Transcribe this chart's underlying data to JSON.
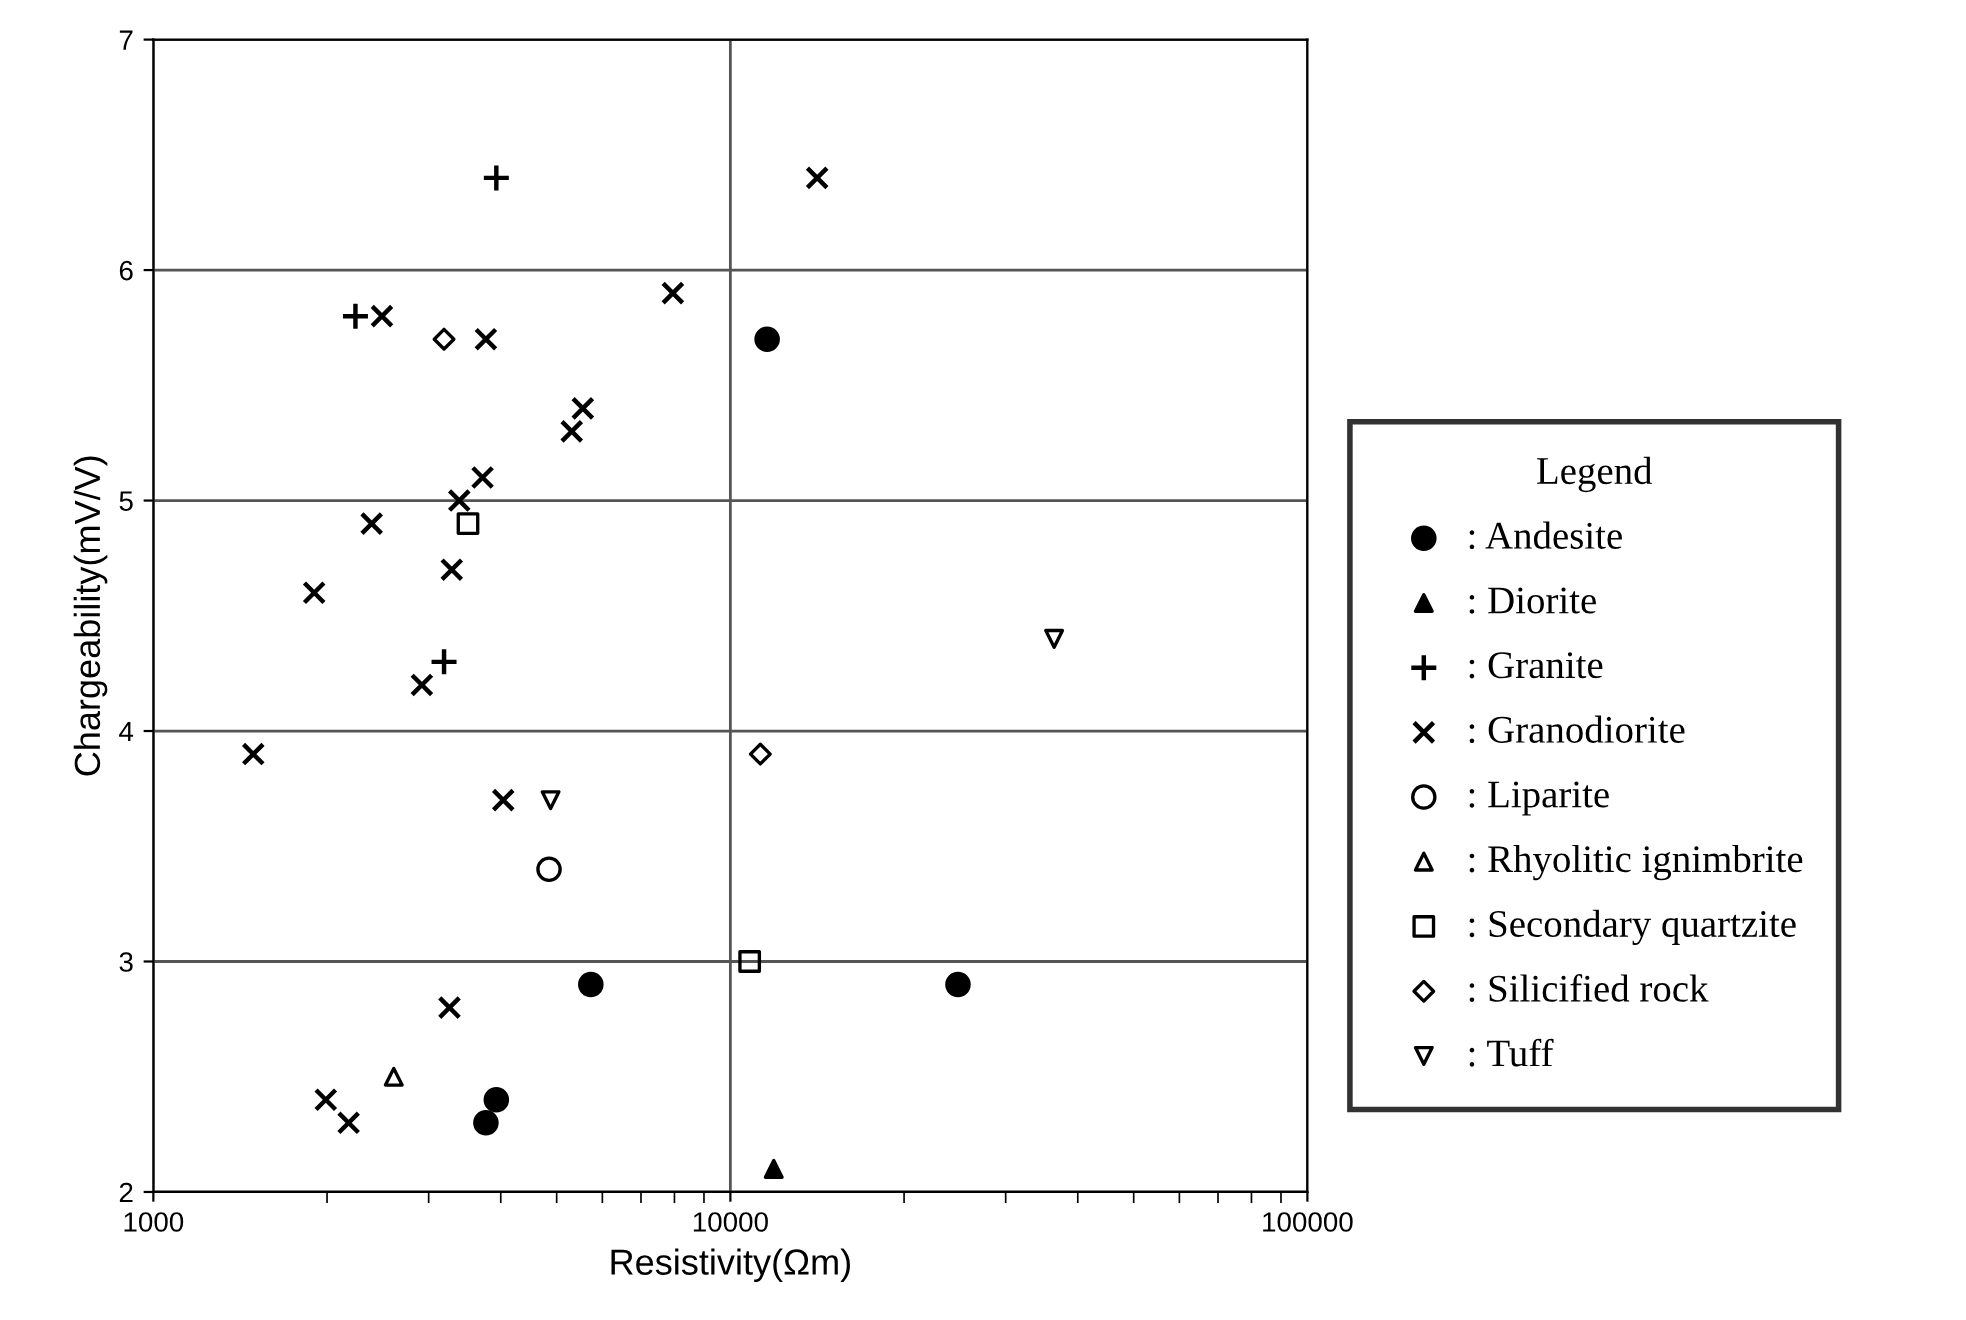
{
  "chart_data": {
    "type": "scatter",
    "xlabel": "Resistivity(Ωm)",
    "ylabel": "Chargeability(mV/V)",
    "legend_title": "Legend",
    "log": "x",
    "xlim": [
      1000,
      100000
    ],
    "xticks": [
      1000,
      10000,
      100000
    ],
    "ylim": [
      2,
      7
    ],
    "yticks": [
      2,
      3,
      4,
      5,
      6,
      7
    ],
    "grid": true,
    "legend": "right",
    "series": [
      {
        "name": ": Andesite",
        "color": "#000000",
        "marker": "circle",
        "x": [
          11580,
          5730,
          3930,
          3770,
          24800
        ],
        "values": [
          5.7,
          2.9,
          2.4,
          2.3,
          2.9
        ]
      },
      {
        "name": ": Diorite",
        "color": "#000000",
        "marker": "triangle",
        "x": [
          11890
        ],
        "values": [
          2.1
        ]
      },
      {
        "name": ": Granite",
        "color": "#000000",
        "marker": "plus",
        "x": [
          3930,
          2240,
          3190
        ],
        "values": [
          6.4,
          5.8,
          4.3
        ]
      },
      {
        "name": ": Granodiorite",
        "color": "#000000",
        "marker": "cross",
        "x": [
          7950,
          2490,
          3770,
          5550,
          5310,
          3720,
          3390,
          2390,
          3290,
          1900,
          2920,
          1490,
          4040,
          3260,
          1990,
          2180,
          14140
        ],
        "values": [
          5.9,
          5.8,
          5.7,
          5.4,
          5.3,
          5.1,
          5.0,
          4.9,
          4.7,
          4.6,
          4.2,
          3.9,
          3.7,
          2.8,
          2.4,
          2.3,
          6.4
        ]
      },
      {
        "name": ": Liparite",
        "color": "#000000",
        "marker": "circle-open",
        "x": [
          4850
        ],
        "values": [
          3.4
        ]
      },
      {
        "name": ": Rhyolitic ignimbrite",
        "color": "#000000",
        "marker": "triangle-open",
        "x": [
          2610
        ],
        "values": [
          2.5
        ]
      },
      {
        "name": ": Secondary quartzite",
        "color": "#000000",
        "marker": "square-open",
        "x": [
          3510,
          10800
        ],
        "values": [
          4.9,
          3.0
        ]
      },
      {
        "name": ": Silicified rock",
        "color": "#000000",
        "marker": "diamond-open",
        "x": [
          3190,
          11270
        ],
        "values": [
          5.7,
          3.9
        ]
      },
      {
        "name": ": Tuff",
        "color": "#000000",
        "marker": "triangle-down-open",
        "x": [
          4880,
          36400
        ],
        "values": [
          3.7,
          4.4
        ]
      }
    ]
  }
}
